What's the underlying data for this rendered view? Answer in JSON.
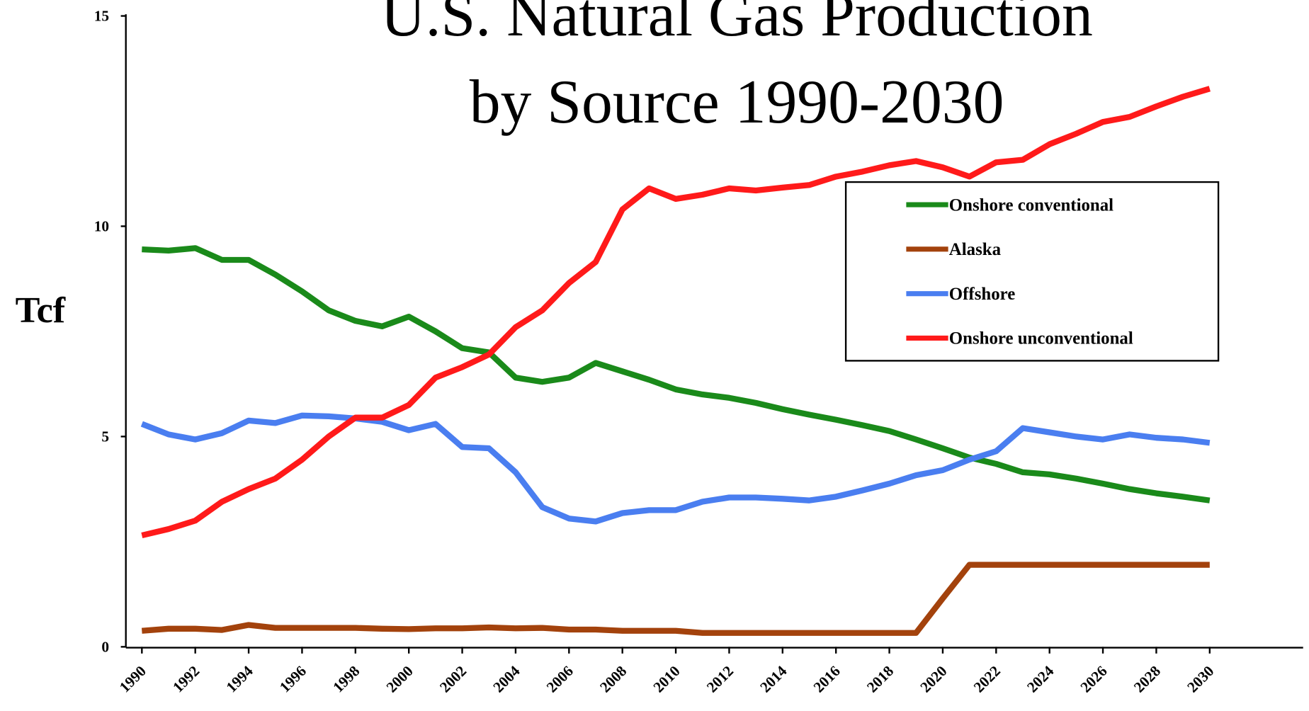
{
  "chart_data": {
    "type": "line",
    "title": [
      "U.S. Natural Gas Production",
      "by Source 1990-2030"
    ],
    "y_label": "Tcf",
    "x": [
      1990,
      1991,
      1992,
      1993,
      1994,
      1995,
      1996,
      1997,
      1998,
      1999,
      2000,
      2001,
      2002,
      2003,
      2004,
      2005,
      2006,
      2007,
      2008,
      2009,
      2010,
      2011,
      2012,
      2013,
      2014,
      2015,
      2016,
      2017,
      2018,
      2019,
      2020,
      2021,
      2022,
      2023,
      2024,
      2025,
      2026,
      2027,
      2028,
      2029,
      2030
    ],
    "series": [
      {
        "name": "Onshore conventional",
        "color": "#1a8a1a",
        "values": [
          9.45,
          9.42,
          9.48,
          9.2,
          9.2,
          8.85,
          8.45,
          8.0,
          7.75,
          7.62,
          7.85,
          7.5,
          7.1,
          7.0,
          6.4,
          6.3,
          6.4,
          6.75,
          6.55,
          6.35,
          6.12,
          6.0,
          5.92,
          5.8,
          5.65,
          5.52,
          5.4,
          5.27,
          5.13,
          4.93,
          4.72,
          4.5,
          4.35,
          4.15,
          4.1,
          4.0,
          3.88,
          3.75,
          3.65,
          3.57,
          3.48
        ]
      },
      {
        "name": "Alaska",
        "color": "#a3420c",
        "values": [
          0.38,
          0.43,
          0.43,
          0.4,
          0.52,
          0.45,
          0.45,
          0.45,
          0.45,
          0.43,
          0.42,
          0.44,
          0.44,
          0.46,
          0.44,
          0.45,
          0.41,
          0.41,
          0.38,
          0.38,
          0.38,
          0.33,
          0.33,
          0.33,
          0.33,
          0.33,
          0.33,
          0.33,
          0.33,
          0.33,
          1.15,
          1.95,
          1.95,
          1.95,
          1.95,
          1.95,
          1.95,
          1.95,
          1.95,
          1.95,
          1.95
        ]
      },
      {
        "name": "Offshore",
        "color": "#4a7ef0",
        "values": [
          5.3,
          5.05,
          4.93,
          5.08,
          5.38,
          5.32,
          5.5,
          5.48,
          5.43,
          5.35,
          5.15,
          5.3,
          4.75,
          4.72,
          4.15,
          3.32,
          3.05,
          2.98,
          3.18,
          3.25,
          3.25,
          3.45,
          3.55,
          3.55,
          3.52,
          3.48,
          3.57,
          3.72,
          3.88,
          4.08,
          4.2,
          4.45,
          4.65,
          5.2,
          5.1,
          5.0,
          4.93,
          5.05,
          4.97,
          4.93,
          4.85
        ]
      },
      {
        "name": "Onshore unconventional",
        "color": "#ff1a1a",
        "values": [
          2.65,
          2.8,
          3.0,
          3.45,
          3.75,
          4.0,
          4.45,
          5.0,
          5.45,
          5.45,
          5.75,
          6.4,
          6.65,
          6.95,
          7.6,
          8.0,
          8.65,
          9.15,
          10.4,
          10.9,
          10.65,
          10.75,
          10.9,
          10.85,
          10.92,
          10.98,
          11.18,
          11.3,
          11.45,
          11.55,
          11.4,
          11.18,
          11.52,
          11.58,
          11.95,
          12.2,
          12.48,
          12.6,
          12.85,
          13.08,
          13.27
        ]
      }
    ],
    "xlim": [
      1989.4,
      2033.5
    ],
    "xticks": [
      1990,
      1992,
      1994,
      1996,
      1998,
      2000,
      2002,
      2004,
      2006,
      2008,
      2010,
      2012,
      2014,
      2016,
      2018,
      2020,
      2022,
      2024,
      2026,
      2028,
      2030
    ],
    "ylim": [
      0,
      15
    ],
    "yticks": [
      0,
      5,
      10,
      15
    ],
    "legend": "upper right"
  }
}
